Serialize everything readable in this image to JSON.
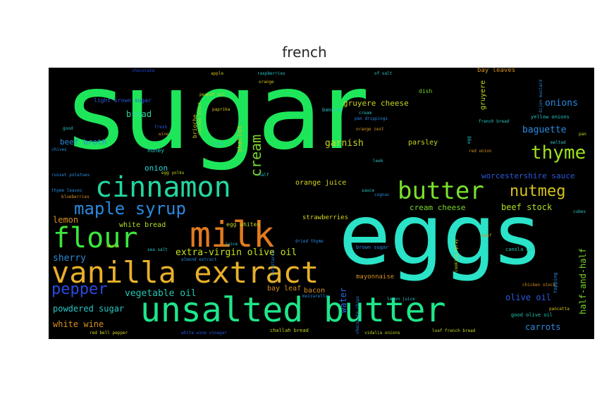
{
  "title": "french",
  "words": [
    {
      "text": "sugar",
      "color": "#1ee65a"
    },
    {
      "text": "eggs",
      "color": "#2ae3c8"
    },
    {
      "text": "unsalted butter",
      "color": "#1ee68a"
    },
    {
      "text": "vanilla extract",
      "color": "#e8b02a"
    },
    {
      "text": "milk",
      "color": "#e07a1e"
    },
    {
      "text": "cinnamon",
      "color": "#23d6a0"
    },
    {
      "text": "flour",
      "color": "#3ce63c"
    },
    {
      "text": "butter",
      "color": "#7ae02a"
    },
    {
      "text": "thyme",
      "color": "#9ee01e"
    },
    {
      "text": "nutmeg",
      "color": "#d6c21e"
    },
    {
      "text": "maple syrup",
      "color": "#2a8ae0"
    },
    {
      "text": "pepper",
      "color": "#2a4ae0"
    },
    {
      "text": "cream",
      "color": "#7ad62a"
    },
    {
      "text": "extra-virgin olive oil",
      "color": "#c6e01e"
    },
    {
      "text": "vegetable oil",
      "color": "#23c6b0"
    },
    {
      "text": "powdered sugar",
      "color": "#2ac6c6"
    },
    {
      "text": "white wine",
      "color": "#d6901e"
    },
    {
      "text": "sherry",
      "color": "#2a8ad6"
    },
    {
      "text": "lemon",
      "color": "#d6901e"
    },
    {
      "text": "white bread",
      "color": "#aee01e"
    },
    {
      "text": "onion",
      "color": "#2ad6d6"
    },
    {
      "text": "bread",
      "color": "#2ad6a0"
    },
    {
      "text": "beef broth",
      "color": "#2a8ae0"
    },
    {
      "text": "garnish",
      "color": "#c6d61e"
    },
    {
      "text": "gruyere cheese",
      "color": "#c6d61e"
    },
    {
      "text": "cream cheese",
      "color": "#7ad62a"
    },
    {
      "text": "beef stock",
      "color": "#aee01e"
    },
    {
      "text": "baguette",
      "color": "#2a8ae0"
    },
    {
      "text": "onions",
      "color": "#2a8ae0"
    },
    {
      "text": "worcestershire sauce",
      "color": "#2a5ae0"
    },
    {
      "text": "half-and-half",
      "color": "#7ad62a"
    },
    {
      "text": "olive oil",
      "color": "#2a5ae0"
    },
    {
      "text": "carrots",
      "color": "#2a8ae0"
    },
    {
      "text": "water",
      "color": "#2a6ae0"
    },
    {
      "text": "bay leaf",
      "color": "#d6901e"
    },
    {
      "text": "bacon",
      "color": "#d6901e"
    },
    {
      "text": "mayonnaise",
      "color": "#d6901e"
    },
    {
      "text": "parsley",
      "color": "#c6d61e"
    },
    {
      "text": "orange juice",
      "color": "#d6d61e"
    },
    {
      "text": "strawberries",
      "color": "#d6d61e"
    },
    {
      "text": "egg whites",
      "color": "#c6d61e"
    },
    {
      "text": "gruyere",
      "color": "#c6d61e"
    },
    {
      "text": "bay leaves",
      "color": "#d6901e"
    },
    {
      "text": "yellow onions",
      "color": "#2ac6c6"
    },
    {
      "text": "shallot",
      "color": "#d6c21e"
    },
    {
      "text": "bananas",
      "color": "#2ac6c6"
    },
    {
      "text": "honey",
      "color": "#2ac6c6"
    },
    {
      "text": "brioche",
      "color": "#d6c21e"
    },
    {
      "text": "light brown sugar",
      "color": "#2a5ae0"
    },
    {
      "text": "canola oil",
      "color": "#23c6b0"
    },
    {
      "text": "good olive oil",
      "color": "#23c6b0"
    },
    {
      "text": "brown sugar",
      "color": "#2a8ae0"
    },
    {
      "text": "challah bread",
      "color": "#c6d61e"
    },
    {
      "text": "dish",
      "color": "#7ad62a"
    },
    {
      "text": "chocolate",
      "color": "#2a4ae0"
    },
    {
      "text": "raspberries",
      "color": "#2ac6c6"
    },
    {
      "text": "peanut oil",
      "color": "#c6d61e"
    },
    {
      "text": "paprika",
      "color": "#d6c21e"
    },
    {
      "text": "chicken broth",
      "color": "#c6d61e"
    },
    {
      "text": "red onion",
      "color": "#d6901e"
    },
    {
      "text": "french bread",
      "color": "#2ac6c6"
    },
    {
      "text": "russet potatoes",
      "color": "#2a8ae0"
    },
    {
      "text": "thyme leaves",
      "color": "#2a8ae0"
    },
    {
      "text": "blueberries",
      "color": "#d6901e"
    },
    {
      "text": "almond extract",
      "color": "#2a8ae0"
    },
    {
      "text": "sea salt",
      "color": "#2ac6c6"
    },
    {
      "text": "whole",
      "color": "#c6d61e"
    },
    {
      "text": "dried thyme",
      "color": "#2a8ae0"
    },
    {
      "text": "cornstarch",
      "color": "#2a8ae0"
    },
    {
      "text": "red bell pepper",
      "color": "#d6d61e"
    },
    {
      "text": "white wine vinegar",
      "color": "#2a5ae0"
    },
    {
      "text": "loaf french bread",
      "color": "#c6d61e"
    },
    {
      "text": "vidalia onions",
      "color": "#c6d61e"
    },
    {
      "text": "lemon juice",
      "color": "#2ac6c6"
    },
    {
      "text": "chocolate chips",
      "color": "#2a8ae0"
    },
    {
      "text": "mozzarella",
      "color": "#2a8ae0"
    },
    {
      "text": "apple",
      "color": "#d6c21e"
    },
    {
      "text": "orange",
      "color": "#d6c21e"
    },
    {
      "text": "of salt",
      "color": "#2ac6c6"
    },
    {
      "text": "pan drippings",
      "color": "#2a8ae0"
    },
    {
      "text": "orange zest",
      "color": "#d6901e"
    },
    {
      "text": "cognac",
      "color": "#2a8ae0"
    },
    {
      "text": "leek",
      "color": "#2ac6c6"
    },
    {
      "text": "melted",
      "color": "#2ac6c6"
    },
    {
      "text": "cubes",
      "color": "#2ac6c6"
    },
    {
      "text": "chicken stock",
      "color": "#d6901e"
    },
    {
      "text": "pancetta",
      "color": "#d6c21e"
    },
    {
      "text": "topping",
      "color": "#2a8ae0"
    },
    {
      "text": "beef",
      "color": "#d6901e"
    },
    {
      "text": "cooking spray",
      "color": "#c6d61e"
    },
    {
      "text": "half",
      "color": "#2ac6c6"
    },
    {
      "text": "chives",
      "color": "#2a8ae0"
    },
    {
      "text": "light",
      "color": "#2ac6c6"
    },
    {
      "text": "egg yolks",
      "color": "#c6d61e"
    },
    {
      "text": "wine",
      "color": "#d6901e"
    },
    {
      "text": "fresh",
      "color": "#2a5ae0"
    },
    {
      "text": "egg",
      "color": "#2ac6c6"
    },
    {
      "text": "dijon mustard",
      "color": "#2a8ae0"
    },
    {
      "text": "pan",
      "color": "#c6d61e"
    },
    {
      "text": "good",
      "color": "#2ac6c6"
    },
    {
      "text": "juice",
      "color": "#2ac6c6"
    },
    {
      "text": "cream",
      "color": "#2ac6c6"
    },
    {
      "text": "sauce",
      "color": "#2ac6c6"
    }
  ]
}
